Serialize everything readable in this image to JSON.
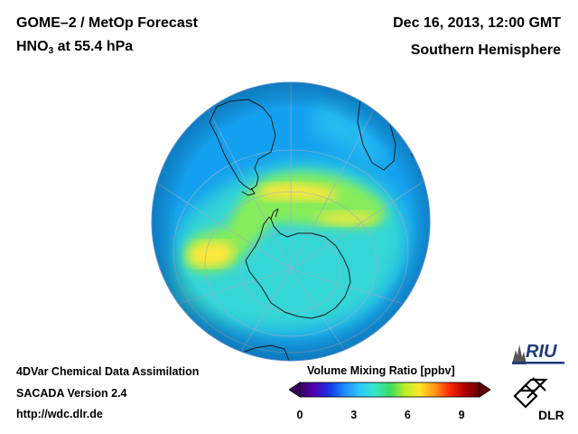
{
  "header": {
    "product": "GOME–2 / MetOp Forecast",
    "species_main": "HNO",
    "species_sub": "3",
    "level": "at 55.4 hPa",
    "datetime": "Dec 16, 2013, 12:00 GMT",
    "region": "Southern Hemisphere"
  },
  "footer": {
    "line1": "4DVar Chemical Data Assimilation",
    "line2": "SACADA Version 2.4",
    "line3": "http://wdc.dlr.de"
  },
  "colorbar": {
    "title": "Volume Mixing Ratio [ppbv]",
    "min": 0,
    "max": 10,
    "ticks": [
      "0",
      "3",
      "6",
      "9"
    ],
    "colors": [
      "#3a0060",
      "#4f00b4",
      "#1438e6",
      "#1e8cff",
      "#2ec8ff",
      "#34e6c8",
      "#3adc64",
      "#b4f028",
      "#ffe628",
      "#ff9614",
      "#ff280a",
      "#b40000",
      "#640000"
    ]
  },
  "logos": {
    "riu": "RIU",
    "dlr": "DLR"
  },
  "map": {
    "projection": "orthographic, South Pole centered",
    "field_colors": {
      "background": "#14a0f0",
      "high": "#ffe83a",
      "mid": "#86ec5a",
      "low": "#3ae0d2"
    }
  }
}
